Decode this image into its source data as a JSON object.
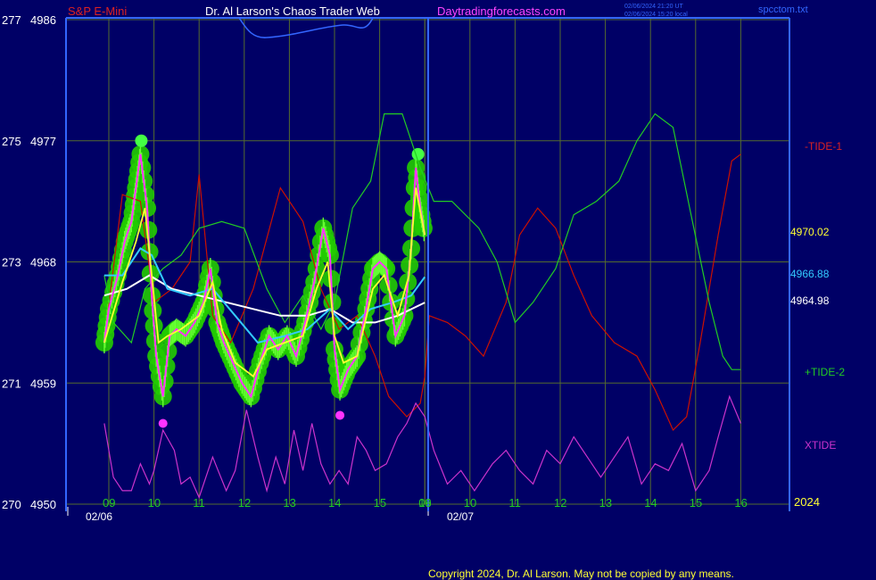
{
  "header": {
    "symbol": "S&P E-Mini",
    "title": "Dr. Al Larson's Chaos Trader Web",
    "site": "Daytradingforecasts.com",
    "timestamp_utc": "02/06/2024 21:20 UT",
    "timestamp_local": "02/06/2024 15:20 local",
    "tag": "spcctom.txt"
  },
  "footer": {
    "copyright": "Copyright 2024, Dr. Al Larson. May not be copied by any means."
  },
  "colors": {
    "background": "#000066",
    "grid": "#556b2f",
    "frame": "#3366ff",
    "tide1": "#cc1100",
    "tide2": "#22cc22",
    "xtide": "#cc33cc",
    "price": "#ff33ff",
    "bands": "#22cc00",
    "ma_fast": "#ffff33",
    "ma_mid": "#33ccff",
    "ma_slow": "#ffffff",
    "marker": "#ff33ff"
  },
  "chart_data": {
    "type": "line",
    "y_axis": {
      "ticks": [
        {
          "left": "277",
          "right": "4986",
          "value": 4986
        },
        {
          "left": "275",
          "right": "4977",
          "value": 4977
        },
        {
          "left": "273",
          "right": "4968",
          "value": 4968
        },
        {
          "left": "271",
          "right": "4959",
          "value": 4959
        },
        {
          "left": "270",
          "right": "4950",
          "value": 4950
        }
      ],
      "range": [
        4950,
        4986
      ]
    },
    "x_axis": {
      "day1_hours": [
        "09",
        "10",
        "11",
        "12",
        "13",
        "14",
        "15",
        "16"
      ],
      "day2_hours": [
        "09",
        "10",
        "11",
        "12",
        "13",
        "14",
        "15",
        "16"
      ],
      "dates": [
        "02/06",
        "02/07"
      ],
      "year": "2024"
    },
    "right_labels": {
      "tide1": "-TIDE-1",
      "ma_fast_value": "4970.02",
      "ma_mid_value": "4966.88",
      "ma_slow_value": "4964.98",
      "tide2": "+TIDE-2",
      "xtide": "XTIDE"
    },
    "price_series": [
      {
        "t": 8.9,
        "y": 4962.0
      },
      {
        "t": 9.0,
        "y": 4964.5
      },
      {
        "t": 9.2,
        "y": 4967.0
      },
      {
        "t": 9.35,
        "y": 4969.5
      },
      {
        "t": 9.5,
        "y": 4971.0
      },
      {
        "t": 9.6,
        "y": 4973.5
      },
      {
        "t": 9.7,
        "y": 4976.0
      },
      {
        "t": 9.85,
        "y": 4972.0
      },
      {
        "t": 9.95,
        "y": 4965.5
      },
      {
        "t": 10.05,
        "y": 4961.0
      },
      {
        "t": 10.2,
        "y": 4958.0
      },
      {
        "t": 10.35,
        "y": 4962.5
      },
      {
        "t": 10.5,
        "y": 4963.0
      },
      {
        "t": 10.7,
        "y": 4962.5
      },
      {
        "t": 10.9,
        "y": 4963.5
      },
      {
        "t": 11.1,
        "y": 4965.0
      },
      {
        "t": 11.25,
        "y": 4967.5
      },
      {
        "t": 11.4,
        "y": 4963.5
      },
      {
        "t": 11.55,
        "y": 4962.0
      },
      {
        "t": 11.75,
        "y": 4960.5
      },
      {
        "t": 11.95,
        "y": 4959.0
      },
      {
        "t": 12.15,
        "y": 4958.0
      },
      {
        "t": 12.35,
        "y": 4960.5
      },
      {
        "t": 12.55,
        "y": 4962.5
      },
      {
        "t": 12.75,
        "y": 4961.5
      },
      {
        "t": 12.95,
        "y": 4962.5
      },
      {
        "t": 13.15,
        "y": 4961.0
      },
      {
        "t": 13.35,
        "y": 4963.5
      },
      {
        "t": 13.55,
        "y": 4966.5
      },
      {
        "t": 13.75,
        "y": 4970.5
      },
      {
        "t": 13.9,
        "y": 4968.5
      },
      {
        "t": 14.0,
        "y": 4961.5
      },
      {
        "t": 14.12,
        "y": 4958.5
      },
      {
        "t": 14.3,
        "y": 4960.0
      },
      {
        "t": 14.5,
        "y": 4961.0
      },
      {
        "t": 14.7,
        "y": 4964.5
      },
      {
        "t": 14.85,
        "y": 4967.5
      },
      {
        "t": 15.0,
        "y": 4968.0
      },
      {
        "t": 15.15,
        "y": 4967.5
      },
      {
        "t": 15.35,
        "y": 4962.5
      },
      {
        "t": 15.55,
        "y": 4964.0
      },
      {
        "t": 15.7,
        "y": 4969.0
      },
      {
        "t": 15.8,
        "y": 4975.0
      },
      {
        "t": 15.9,
        "y": 4972.0
      },
      {
        "t": 16.0,
        "y": 4970.0
      }
    ],
    "ma_fast": [
      {
        "t": 8.9,
        "y": 4962.0
      },
      {
        "t": 9.3,
        "y": 4966.5
      },
      {
        "t": 9.6,
        "y": 4969.5
      },
      {
        "t": 9.8,
        "y": 4972.0
      },
      {
        "t": 9.95,
        "y": 4967.0
      },
      {
        "t": 10.1,
        "y": 4962.0
      },
      {
        "t": 10.3,
        "y": 4962.5
      },
      {
        "t": 10.6,
        "y": 4963.0
      },
      {
        "t": 11.0,
        "y": 4964.0
      },
      {
        "t": 11.3,
        "y": 4966.5
      },
      {
        "t": 11.5,
        "y": 4963.0
      },
      {
        "t": 11.8,
        "y": 4960.5
      },
      {
        "t": 12.2,
        "y": 4959.5
      },
      {
        "t": 12.5,
        "y": 4961.5
      },
      {
        "t": 12.9,
        "y": 4962.0
      },
      {
        "t": 13.3,
        "y": 4962.5
      },
      {
        "t": 13.6,
        "y": 4966.0
      },
      {
        "t": 13.85,
        "y": 4968.0
      },
      {
        "t": 14.0,
        "y": 4962.5
      },
      {
        "t": 14.2,
        "y": 4960.5
      },
      {
        "t": 14.5,
        "y": 4961.0
      },
      {
        "t": 14.85,
        "y": 4966.0
      },
      {
        "t": 15.1,
        "y": 4967.0
      },
      {
        "t": 15.4,
        "y": 4964.0
      },
      {
        "t": 15.65,
        "y": 4967.0
      },
      {
        "t": 15.8,
        "y": 4973.5
      },
      {
        "t": 16.0,
        "y": 4970.0
      }
    ],
    "ma_mid": [
      {
        "t": 8.9,
        "y": 4967.0
      },
      {
        "t": 9.3,
        "y": 4967.0
      },
      {
        "t": 9.7,
        "y": 4969.0
      },
      {
        "t": 9.95,
        "y": 4968.5
      },
      {
        "t": 10.3,
        "y": 4966.0
      },
      {
        "t": 10.8,
        "y": 4965.5
      },
      {
        "t": 11.3,
        "y": 4966.0
      },
      {
        "t": 11.8,
        "y": 4964.0
      },
      {
        "t": 12.3,
        "y": 4962.0
      },
      {
        "t": 12.9,
        "y": 4962.5
      },
      {
        "t": 13.4,
        "y": 4963.0
      },
      {
        "t": 13.9,
        "y": 4964.5
      },
      {
        "t": 14.3,
        "y": 4963.0
      },
      {
        "t": 14.8,
        "y": 4964.5
      },
      {
        "t": 15.3,
        "y": 4965.0
      },
      {
        "t": 15.7,
        "y": 4965.5
      },
      {
        "t": 16.0,
        "y": 4966.88
      }
    ],
    "ma_slow": [
      {
        "t": 8.9,
        "y": 4965.5
      },
      {
        "t": 9.4,
        "y": 4966.0
      },
      {
        "t": 9.9,
        "y": 4967.0
      },
      {
        "t": 10.4,
        "y": 4966.0
      },
      {
        "t": 11.0,
        "y": 4965.5
      },
      {
        "t": 11.6,
        "y": 4965.0
      },
      {
        "t": 12.2,
        "y": 4964.5
      },
      {
        "t": 12.8,
        "y": 4964.0
      },
      {
        "t": 13.4,
        "y": 4964.0
      },
      {
        "t": 13.9,
        "y": 4964.5
      },
      {
        "t": 14.4,
        "y": 4963.5
      },
      {
        "t": 14.9,
        "y": 4963.5
      },
      {
        "t": 15.4,
        "y": 4964.0
      },
      {
        "t": 16.0,
        "y": 4964.98
      }
    ],
    "tide1": [
      {
        "t": 8.9,
        "y": 4962.0
      },
      {
        "t": 9.3,
        "y": 4973.0
      },
      {
        "t": 9.7,
        "y": 4972.5
      },
      {
        "t": 10.0,
        "y": 4965.0
      },
      {
        "t": 10.4,
        "y": 4966.0
      },
      {
        "t": 10.8,
        "y": 4968.0
      },
      {
        "t": 11.0,
        "y": 4974.5
      },
      {
        "t": 11.3,
        "y": 4964.0
      },
      {
        "t": 11.7,
        "y": 4962.0
      },
      {
        "t": 12.2,
        "y": 4966.0
      },
      {
        "t": 12.8,
        "y": 4973.5
      },
      {
        "t": 13.3,
        "y": 4971.0
      },
      {
        "t": 13.7,
        "y": 4966.0
      },
      {
        "t": 14.1,
        "y": 4963.0
      },
      {
        "t": 14.5,
        "y": 4964.0
      },
      {
        "t": 14.9,
        "y": 4961.0
      },
      {
        "t": 15.2,
        "y": 4958.0
      },
      {
        "t": 15.6,
        "y": 4956.5
      },
      {
        "t": 15.9,
        "y": 4957.5
      },
      {
        "t": 16.0,
        "y": 4959.5
      },
      {
        "t": 16.1,
        "y": 4964.0
      },
      {
        "t": 16.5,
        "y": 4963.5
      },
      {
        "t": 16.9,
        "y": 4962.5
      },
      {
        "t": 17.3,
        "y": 4961.0
      },
      {
        "t": 17.8,
        "y": 4965.0
      },
      {
        "t": 18.1,
        "y": 4970.0
      },
      {
        "t": 18.5,
        "y": 4972.0
      },
      {
        "t": 18.9,
        "y": 4970.5
      },
      {
        "t": 19.3,
        "y": 4967.0
      },
      {
        "t": 19.7,
        "y": 4964.0
      },
      {
        "t": 20.2,
        "y": 4962.0
      },
      {
        "t": 20.7,
        "y": 4961.0
      },
      {
        "t": 21.1,
        "y": 4958.5
      },
      {
        "t": 21.5,
        "y": 4955.5
      },
      {
        "t": 21.8,
        "y": 4956.5
      },
      {
        "t": 22.1,
        "y": 4962.0
      },
      {
        "t": 22.5,
        "y": 4970.0
      },
      {
        "t": 22.8,
        "y": 4975.5
      },
      {
        "t": 23.0,
        "y": 4976.0
      }
    ],
    "tide2": [
      {
        "t": 8.9,
        "y": 4967.0
      },
      {
        "t": 9.1,
        "y": 4963.5
      },
      {
        "t": 9.5,
        "y": 4962.0
      },
      {
        "t": 9.8,
        "y": 4966.0
      },
      {
        "t": 10.2,
        "y": 4967.5
      },
      {
        "t": 10.6,
        "y": 4968.5
      },
      {
        "t": 11.0,
        "y": 4970.5
      },
      {
        "t": 11.5,
        "y": 4971.0
      },
      {
        "t": 12.0,
        "y": 4970.5
      },
      {
        "t": 12.5,
        "y": 4966.0
      },
      {
        "t": 12.9,
        "y": 4963.5
      },
      {
        "t": 13.3,
        "y": 4965.5
      },
      {
        "t": 13.7,
        "y": 4963.0
      },
      {
        "t": 14.0,
        "y": 4965.0
      },
      {
        "t": 14.4,
        "y": 4972.0
      },
      {
        "t": 14.8,
        "y": 4974.0
      },
      {
        "t": 15.1,
        "y": 4979.0
      },
      {
        "t": 15.5,
        "y": 4979.0
      },
      {
        "t": 15.9,
        "y": 4975.0
      },
      {
        "t": 16.2,
        "y": 4972.5
      },
      {
        "t": 16.6,
        "y": 4972.5
      },
      {
        "t": 17.2,
        "y": 4970.5
      },
      {
        "t": 17.6,
        "y": 4968.0
      },
      {
        "t": 18.0,
        "y": 4963.5
      },
      {
        "t": 18.4,
        "y": 4965.0
      },
      {
        "t": 18.9,
        "y": 4967.5
      },
      {
        "t": 19.3,
        "y": 4971.5
      },
      {
        "t": 19.8,
        "y": 4972.5
      },
      {
        "t": 20.3,
        "y": 4974.0
      },
      {
        "t": 20.7,
        "y": 4977.0
      },
      {
        "t": 21.1,
        "y": 4979.0
      },
      {
        "t": 21.5,
        "y": 4978.0
      },
      {
        "t": 21.9,
        "y": 4971.5
      },
      {
        "t": 22.3,
        "y": 4965.0
      },
      {
        "t": 22.6,
        "y": 4961.0
      },
      {
        "t": 22.8,
        "y": 4960.0
      },
      {
        "t": 23.0,
        "y": 4960.0
      }
    ],
    "xtide": [
      {
        "t": 8.9,
        "y": 4956.0
      },
      {
        "t": 9.1,
        "y": 4952.0
      },
      {
        "t": 9.3,
        "y": 4951.0
      },
      {
        "t": 9.5,
        "y": 4951.0
      },
      {
        "t": 9.7,
        "y": 4953.0
      },
      {
        "t": 9.9,
        "y": 4951.5
      },
      {
        "t": 10.0,
        "y": 4952.5
      },
      {
        "t": 10.2,
        "y": 4955.5
      },
      {
        "t": 10.45,
        "y": 4954.0
      },
      {
        "t": 10.6,
        "y": 4951.5
      },
      {
        "t": 10.8,
        "y": 4952.0
      },
      {
        "t": 11.0,
        "y": 4950.5
      },
      {
        "t": 11.3,
        "y": 4953.5
      },
      {
        "t": 11.6,
        "y": 4951.0
      },
      {
        "t": 11.8,
        "y": 4952.5
      },
      {
        "t": 12.05,
        "y": 4957.0
      },
      {
        "t": 12.3,
        "y": 4953.5
      },
      {
        "t": 12.5,
        "y": 4951.0
      },
      {
        "t": 12.7,
        "y": 4953.5
      },
      {
        "t": 12.9,
        "y": 4951.5
      },
      {
        "t": 13.1,
        "y": 4955.5
      },
      {
        "t": 13.3,
        "y": 4952.5
      },
      {
        "t": 13.5,
        "y": 4956.0
      },
      {
        "t": 13.7,
        "y": 4953.0
      },
      {
        "t": 13.9,
        "y": 4951.5
      },
      {
        "t": 14.1,
        "y": 4952.5
      },
      {
        "t": 14.3,
        "y": 4951.5
      },
      {
        "t": 14.5,
        "y": 4955.0
      },
      {
        "t": 14.7,
        "y": 4954.0
      },
      {
        "t": 14.9,
        "y": 4952.5
      },
      {
        "t": 15.15,
        "y": 4953.0
      },
      {
        "t": 15.4,
        "y": 4955.0
      },
      {
        "t": 15.6,
        "y": 4956.0
      },
      {
        "t": 15.8,
        "y": 4957.5
      },
      {
        "t": 16.0,
        "y": 4956.5
      },
      {
        "t": 16.2,
        "y": 4954.0
      },
      {
        "t": 16.5,
        "y": 4951.5
      },
      {
        "t": 16.8,
        "y": 4952.5
      },
      {
        "t": 17.1,
        "y": 4951.0
      },
      {
        "t": 17.5,
        "y": 4953.0
      },
      {
        "t": 17.8,
        "y": 4954.0
      },
      {
        "t": 18.1,
        "y": 4952.5
      },
      {
        "t": 18.4,
        "y": 4951.5
      },
      {
        "t": 18.7,
        "y": 4954.0
      },
      {
        "t": 19.0,
        "y": 4953.0
      },
      {
        "t": 19.3,
        "y": 4955.0
      },
      {
        "t": 19.6,
        "y": 4953.5
      },
      {
        "t": 19.9,
        "y": 4952.0
      },
      {
        "t": 20.2,
        "y": 4953.5
      },
      {
        "t": 20.5,
        "y": 4955.0
      },
      {
        "t": 20.8,
        "y": 4951.5
      },
      {
        "t": 21.1,
        "y": 4953.0
      },
      {
        "t": 21.4,
        "y": 4952.5
      },
      {
        "t": 21.7,
        "y": 4954.5
      },
      {
        "t": 22.0,
        "y": 4951.0
      },
      {
        "t": 22.3,
        "y": 4952.5
      },
      {
        "t": 22.5,
        "y": 4955.0
      },
      {
        "t": 22.75,
        "y": 4958.0
      },
      {
        "t": 23.0,
        "y": 4956.0
      }
    ],
    "markers": [
      {
        "t": 10.2,
        "y": 4956.0
      },
      {
        "t": 14.12,
        "y": 4956.6
      }
    ]
  }
}
